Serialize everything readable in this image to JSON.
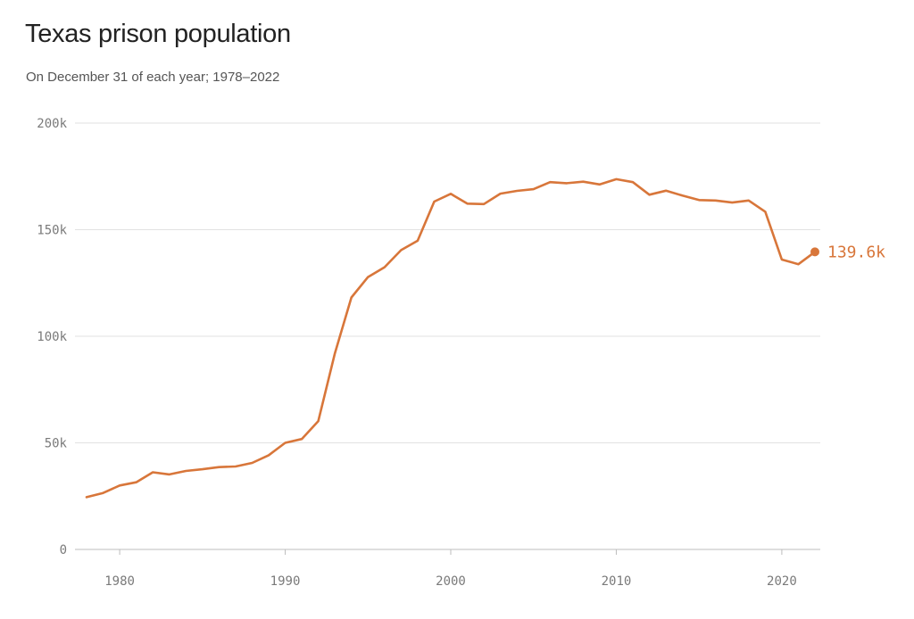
{
  "colors": {
    "line": "#d8763a",
    "grid": "#e2e2e2",
    "axis": "#bdbdbd"
  },
  "chart_data": {
    "type": "line",
    "title": "Texas prison population",
    "subtitle": "On December 31 of each year; 1978–2022",
    "xlim": [
      1978,
      2022
    ],
    "ylim": [
      0,
      200000
    ],
    "x_ticks": [
      1980,
      1990,
      2000,
      2010,
      2020
    ],
    "x_tick_labels": [
      "1980",
      "1990",
      "2000",
      "2010",
      "2020"
    ],
    "y_ticks": [
      0,
      50000,
      100000,
      150000,
      200000
    ],
    "y_tick_labels": [
      "0",
      "50k",
      "100k",
      "150k",
      "200k"
    ],
    "grid": true,
    "end_label": "139.6k",
    "series": [
      {
        "x": [
          1978,
          1979,
          1980,
          1981,
          1982,
          1983,
          1984,
          1985,
          1986,
          1987,
          1988,
          1989,
          1990,
          1991,
          1992,
          1993,
          1994,
          1995,
          1996,
          1997,
          1998,
          1999,
          2000,
          2001,
          2002,
          2003,
          2004,
          2005,
          2006,
          2007,
          2008,
          2009,
          2010,
          2011,
          2012,
          2013,
          2014,
          2015,
          2016,
          2017,
          2018,
          2019,
          2020,
          2021,
          2022
        ],
        "values": [
          24500,
          26500,
          30000,
          31500,
          36200,
          35200,
          36800,
          37600,
          38600,
          38900,
          40600,
          44200,
          50000,
          51800,
          60200,
          92000,
          118200,
          127800,
          132400,
          140400,
          144800,
          163200,
          166800,
          162200,
          162000,
          166900,
          168200,
          169000,
          172300,
          171800,
          172500,
          171200,
          173700,
          172300,
          166400,
          168300,
          166000,
          163900,
          163700,
          162700,
          163700,
          158400,
          136000,
          133800,
          139600
        ]
      }
    ]
  }
}
